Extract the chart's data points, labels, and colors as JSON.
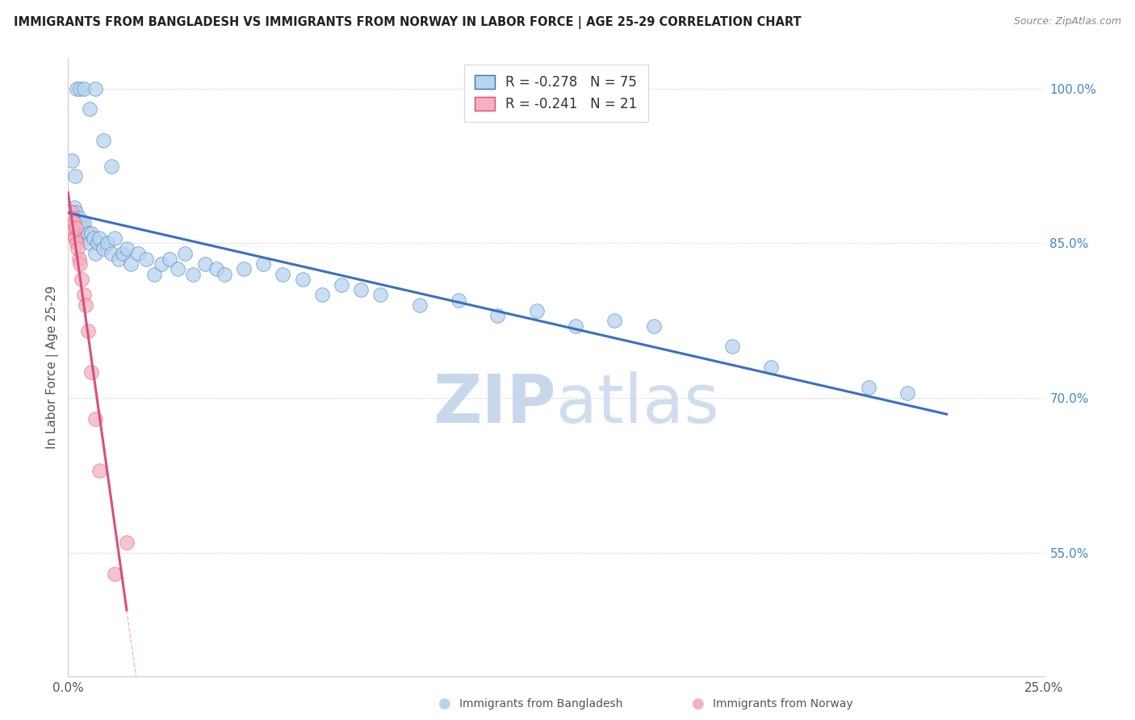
{
  "title": "IMMIGRANTS FROM BANGLADESH VS IMMIGRANTS FROM NORWAY IN LABOR FORCE | AGE 25-29 CORRELATION CHART",
  "source": "Source: ZipAtlas.com",
  "ylabel": "In Labor Force | Age 25-29",
  "xlim": [
    0.0,
    25.0
  ],
  "ylim": [
    43.0,
    103.0
  ],
  "y_ticks": [
    55.0,
    70.0,
    85.0,
    100.0
  ],
  "x_ticks": [
    0.0,
    5.0,
    10.0,
    15.0,
    20.0,
    25.0
  ],
  "r_bangladesh": -0.278,
  "n_bangladesh": 75,
  "r_norway": -0.241,
  "n_norway": 21,
  "color_bangladesh": "#b8d4ed",
  "color_norway": "#f4b0c0",
  "trendline_bangladesh": "#3a6fc4",
  "trendline_norway": "#d94f78",
  "legend_label_bangladesh": "Immigrants from Bangladesh",
  "legend_label_norway": "Immigrants from Norway",
  "bd_x": [
    0.05,
    0.07,
    0.08,
    0.09,
    0.1,
    0.11,
    0.12,
    0.13,
    0.15,
    0.16,
    0.18,
    0.2,
    0.22,
    0.25,
    0.28,
    0.3,
    0.32,
    0.35,
    0.38,
    0.4,
    0.45,
    0.5,
    0.55,
    0.6,
    0.65,
    0.7,
    0.75,
    0.8,
    0.9,
    1.0,
    1.1,
    1.2,
    1.3,
    1.4,
    1.5,
    1.6,
    1.8,
    2.0,
    2.2,
    2.4,
    2.6,
    2.8,
    3.0,
    3.2,
    3.5,
    3.8,
    4.0,
    4.5,
    5.0,
    5.5,
    6.0,
    6.5,
    7.0,
    7.5,
    8.0,
    9.0,
    10.0,
    11.0,
    12.0,
    13.0,
    14.0,
    15.0,
    17.0,
    18.0,
    20.5,
    21.5,
    0.1,
    0.18,
    0.22,
    0.3,
    0.4,
    0.55,
    0.7,
    0.9,
    1.1
  ],
  "bd_y": [
    87.0,
    87.5,
    88.0,
    86.5,
    87.0,
    88.0,
    87.5,
    86.0,
    88.5,
    87.0,
    86.5,
    88.0,
    87.0,
    86.5,
    87.5,
    87.0,
    86.0,
    87.0,
    86.5,
    87.0,
    85.5,
    86.0,
    85.0,
    86.0,
    85.5,
    84.0,
    85.0,
    85.5,
    84.5,
    85.0,
    84.0,
    85.5,
    83.5,
    84.0,
    84.5,
    83.0,
    84.0,
    83.5,
    82.0,
    83.0,
    83.5,
    82.5,
    84.0,
    82.0,
    83.0,
    82.5,
    82.0,
    82.5,
    83.0,
    82.0,
    81.5,
    80.0,
    81.0,
    80.5,
    80.0,
    79.0,
    79.5,
    78.0,
    78.5,
    77.0,
    77.5,
    77.0,
    75.0,
    73.0,
    71.0,
    70.5,
    93.0,
    91.5,
    100.0,
    100.0,
    100.0,
    98.0,
    100.0,
    95.0,
    92.5
  ],
  "no_x": [
    0.05,
    0.07,
    0.08,
    0.1,
    0.12,
    0.15,
    0.17,
    0.2,
    0.22,
    0.25,
    0.28,
    0.3,
    0.35,
    0.4,
    0.45,
    0.5,
    0.6,
    0.7,
    0.8,
    1.2,
    1.5
  ],
  "no_y": [
    87.0,
    88.0,
    86.0,
    87.5,
    86.5,
    87.0,
    85.5,
    86.5,
    85.0,
    84.5,
    83.5,
    83.0,
    81.5,
    80.0,
    79.0,
    76.5,
    72.5,
    68.0,
    63.0,
    53.0,
    56.0
  ]
}
